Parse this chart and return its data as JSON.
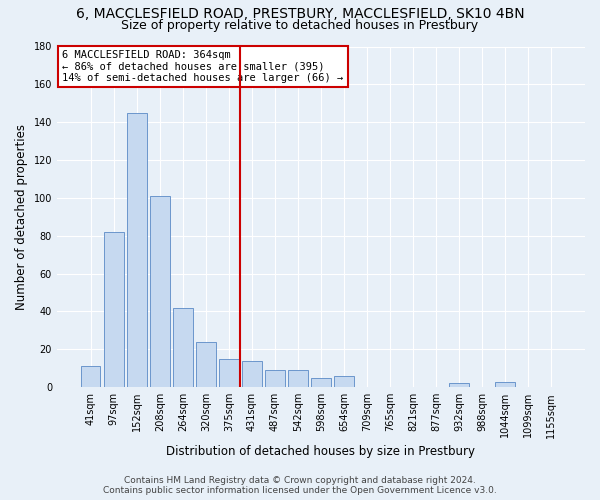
{
  "title": "6, MACCLESFIELD ROAD, PRESTBURY, MACCLESFIELD, SK10 4BN",
  "subtitle": "Size of property relative to detached houses in Prestbury",
  "xlabel": "Distribution of detached houses by size in Prestbury",
  "ylabel": "Number of detached properties",
  "bar_labels": [
    "41sqm",
    "97sqm",
    "152sqm",
    "208sqm",
    "264sqm",
    "320sqm",
    "375sqm",
    "431sqm",
    "487sqm",
    "542sqm",
    "598sqm",
    "654sqm",
    "709sqm",
    "765sqm",
    "821sqm",
    "877sqm",
    "932sqm",
    "988sqm",
    "1044sqm",
    "1099sqm",
    "1155sqm"
  ],
  "bar_values": [
    11,
    82,
    145,
    101,
    42,
    24,
    15,
    14,
    9,
    9,
    5,
    6,
    0,
    0,
    0,
    0,
    2,
    0,
    3,
    0,
    0
  ],
  "bar_color": "#c6d9f0",
  "bar_edge_color": "#5a8ac6",
  "vline_color": "#cc0000",
  "vline_x": 6.5,
  "annotation_line1": "6 MACCLESFIELD ROAD: 364sqm",
  "annotation_line2": "← 86% of detached houses are smaller (395)",
  "annotation_line3": "14% of semi-detached houses are larger (66) →",
  "annotation_box_color": "#ffffff",
  "annotation_box_edge_color": "#cc0000",
  "ylim": [
    0,
    180
  ],
  "yticks": [
    0,
    20,
    40,
    60,
    80,
    100,
    120,
    140,
    160,
    180
  ],
  "footer_line1": "Contains HM Land Registry data © Crown copyright and database right 2024.",
  "footer_line2": "Contains public sector information licensed under the Open Government Licence v3.0.",
  "background_color": "#e8f0f8",
  "plot_background_color": "#e8f0f8",
  "title_fontsize": 10,
  "subtitle_fontsize": 9,
  "axis_label_fontsize": 8.5,
  "tick_fontsize": 7,
  "annotation_fontsize": 7.5,
  "footer_fontsize": 6.5
}
